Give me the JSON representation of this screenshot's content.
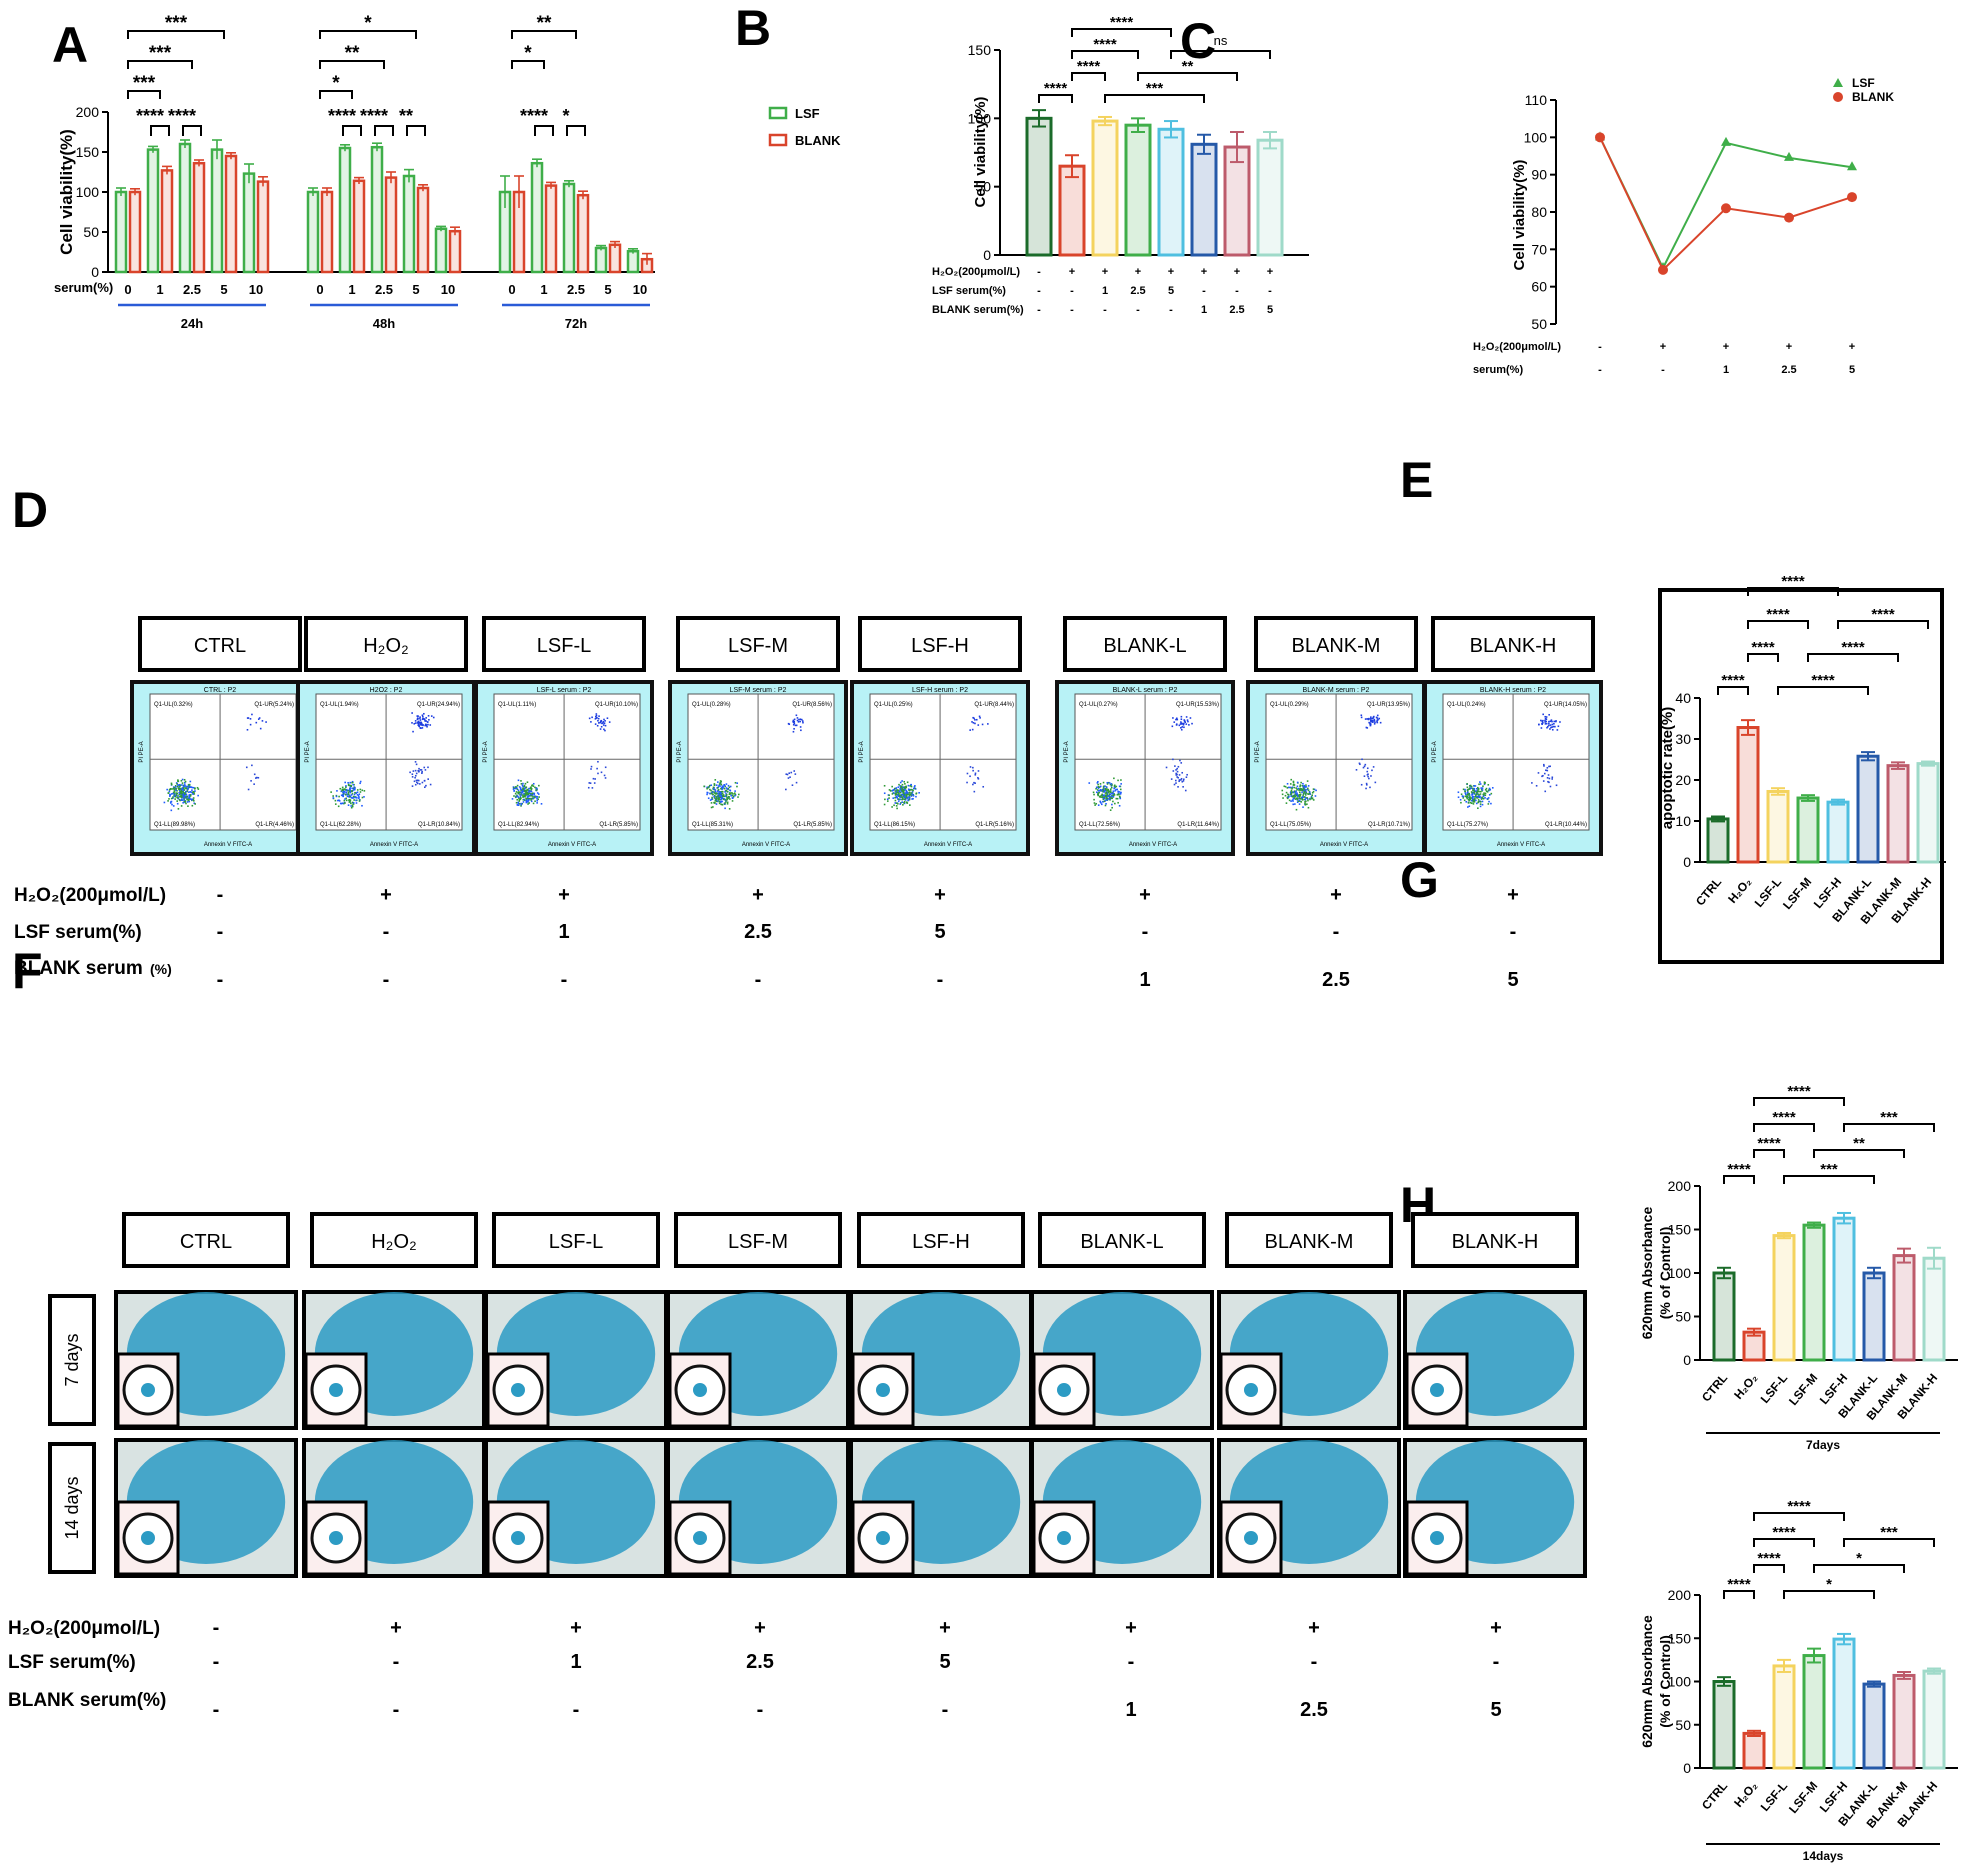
{
  "colors": {
    "CTRL": "#1b6b2a",
    "H2O2": "#d9442b",
    "LSF-L": "#f4d35e",
    "LSF-M": "#3fae49",
    "LSF-H": "#4fbfe0",
    "BLANK-L": "#2559a8",
    "BLANK-M": "#bd5b6b",
    "BLANK-H": "#9fdac9",
    "LSF": "#3fae49",
    "BLANK": "#d9442b",
    "axisline": "#2a5bd7",
    "flow_bg": "#b8f2f6",
    "stain": "#2c9bc4"
  },
  "panel_labels": {
    "A": "A",
    "B": "B",
    "C": "C",
    "D": "D",
    "E": "E",
    "F": "F",
    "G": "G",
    "H": "H"
  },
  "chart_data": [
    {
      "id": "A",
      "type": "bar",
      "ylabel": "Cell viability(%)",
      "ylim": [
        0,
        200
      ],
      "yticks": [
        0,
        50,
        100,
        150,
        200
      ],
      "xlabel_prefix": "serum(%)",
      "categories": [
        "0",
        "1",
        "2.5",
        "5",
        "10"
      ],
      "groups": [
        {
          "label": "24h",
          "LSF": [
            100,
            153,
            160,
            153,
            123
          ],
          "BLANK": [
            100,
            127,
            136,
            145,
            113
          ],
          "LSF_err": [
            5,
            4,
            5,
            12,
            12
          ],
          "BLANK_err": [
            4,
            5,
            4,
            4,
            6
          ]
        },
        {
          "label": "48h",
          "LSF": [
            100,
            155,
            156,
            120,
            54
          ],
          "BLANK": [
            100,
            114,
            118,
            105,
            51
          ],
          "LSF_err": [
            5,
            4,
            5,
            8,
            3
          ],
          "BLANK_err": [
            5,
            4,
            7,
            4,
            5
          ]
        },
        {
          "label": "72h",
          "LSF": [
            100,
            136,
            110,
            30,
            26
          ],
          "BLANK": [
            100,
            108,
            96,
            34,
            16
          ],
          "LSF_err": [
            20,
            5,
            4,
            3,
            3
          ],
          "BLANK_err": [
            20,
            4,
            5,
            4,
            7
          ]
        }
      ],
      "legend": [
        "LSF",
        "BLANK"
      ],
      "legend_position": "top-right",
      "annotations": [
        {
          "group": 0,
          "from": 0,
          "to": 3,
          "level": 0,
          "text": "***"
        },
        {
          "group": 0,
          "from": 0,
          "to": 2,
          "level": 1,
          "text": "***"
        },
        {
          "group": 0,
          "from": 0,
          "to": 1,
          "level": 2,
          "text": "***"
        },
        {
          "group": 1,
          "from": 0,
          "to": 3,
          "level": 0,
          "text": "*"
        },
        {
          "group": 1,
          "from": 0,
          "to": 2,
          "level": 1,
          "text": "**"
        },
        {
          "group": 1,
          "from": 0,
          "to": 1,
          "level": 2,
          "text": "*"
        },
        {
          "group": 2,
          "from": 0,
          "to": 2,
          "level": 0,
          "text": "**"
        },
        {
          "group": 2,
          "from": 0,
          "to": 1,
          "level": 1,
          "text": "*"
        }
      ],
      "pair_annotations": [
        {
          "group": 0,
          "cat": 1,
          "text": "****"
        },
        {
          "group": 0,
          "cat": 2,
          "text": "****"
        },
        {
          "group": 1,
          "cat": 1,
          "text": "****"
        },
        {
          "group": 1,
          "cat": 2,
          "text": "****"
        },
        {
          "group": 1,
          "cat": 3,
          "text": "**"
        },
        {
          "group": 2,
          "cat": 1,
          "text": "****"
        },
        {
          "group": 2,
          "cat": 2,
          "text": "*"
        }
      ]
    },
    {
      "id": "B",
      "type": "bar",
      "ylabel": "Cell viability(%)",
      "ylim": [
        0,
        150
      ],
      "yticks": [
        0,
        50,
        100,
        150
      ],
      "values": [
        100,
        65,
        98,
        95,
        92,
        81,
        79,
        84
      ],
      "errors": [
        6,
        8,
        3,
        5,
        6,
        7,
        11,
        6
      ],
      "colors": [
        "CTRL",
        "H2O2",
        "LSF-L",
        "LSF-M",
        "LSF-H",
        "BLANK-L",
        "BLANK-M",
        "BLANK-H"
      ],
      "condition_rows": [
        {
          "label": "H₂O₂(200μmol/L)",
          "cells": [
            "-",
            "+",
            "+",
            "+",
            "+",
            "+",
            "+",
            "+"
          ]
        },
        {
          "label": "LSF serum(%)",
          "cells": [
            "-",
            "-",
            "1",
            "2.5",
            "5",
            "-",
            "-",
            "-"
          ]
        },
        {
          "label": "BLANK serum(%)",
          "cells": [
            "-",
            "-",
            "-",
            "-",
            "-",
            "1",
            "2.5",
            "5"
          ]
        }
      ],
      "annotations": [
        {
          "from": 1,
          "to": 4,
          "level": 3,
          "text": "****"
        },
        {
          "from": 1,
          "to": 3,
          "level": 2,
          "text": "****"
        },
        {
          "from": 4,
          "to": 7,
          "level": 2,
          "text": "ns"
        },
        {
          "from": 1,
          "to": 2,
          "level": 1,
          "text": "****"
        },
        {
          "from": 3,
          "to": 6,
          "level": 1,
          "text": "**"
        },
        {
          "from": 0,
          "to": 1,
          "level": 0,
          "text": "****"
        },
        {
          "from": 2,
          "to": 5,
          "level": 0,
          "text": "***"
        }
      ]
    },
    {
      "id": "C",
      "type": "line",
      "ylabel": "Cell viability(%)",
      "ylim": [
        50,
        110
      ],
      "yticks": [
        50,
        60,
        70,
        80,
        90,
        100,
        110
      ],
      "series": [
        {
          "name": "LSF",
          "values": [
            100,
            65,
            98.5,
            94.5,
            92
          ]
        },
        {
          "name": "BLANK",
          "values": [
            100,
            64.5,
            81,
            78.5,
            84
          ]
        }
      ],
      "legend_position": "top-right",
      "condition_rows": [
        {
          "label": "H₂O₂(200μmol/L)",
          "cells": [
            "-",
            "+",
            "+",
            "+",
            "+"
          ]
        },
        {
          "label": "serum(%)",
          "cells": [
            "-",
            "-",
            "1",
            "2.5",
            "5"
          ]
        }
      ]
    },
    {
      "id": "E",
      "type": "bar",
      "ylabel": "apoptotic rate(%)",
      "ylim": [
        0,
        40
      ],
      "yticks": [
        0,
        10,
        20,
        30,
        40
      ],
      "categories": [
        "CTRL",
        "H₂O₂",
        "LSF-L",
        "LSF-M",
        "LSF-H",
        "BLANK-L",
        "BLANK-M",
        "BLANK-H"
      ],
      "values": [
        10.5,
        32.8,
        17.2,
        15.6,
        14.6,
        25.8,
        23.5,
        24.0
      ],
      "errors": [
        0.6,
        1.8,
        0.8,
        0.7,
        0.6,
        1.0,
        0.8,
        0.5
      ],
      "colors": [
        "CTRL",
        "H2O2",
        "LSF-L",
        "LSF-M",
        "LSF-H",
        "BLANK-L",
        "BLANK-M",
        "BLANK-H"
      ],
      "annotations": [
        {
          "from": 1,
          "to": 4,
          "level": 3,
          "text": "****"
        },
        {
          "from": 1,
          "to": 3,
          "level": 2,
          "text": "****"
        },
        {
          "from": 4,
          "to": 7,
          "level": 2,
          "text": "****"
        },
        {
          "from": 1,
          "to": 2,
          "level": 1,
          "text": "****"
        },
        {
          "from": 3,
          "to": 6,
          "level": 1,
          "text": "****"
        },
        {
          "from": 0,
          "to": 1,
          "level": 0,
          "text": "****"
        },
        {
          "from": 2,
          "to": 5,
          "level": 0,
          "text": "****"
        }
      ]
    },
    {
      "id": "G",
      "type": "bar",
      "ylabel": "620mm Absorbance",
      "ylabel2": "(% of Control)",
      "ylim": [
        0,
        200
      ],
      "yticks": [
        0,
        50,
        100,
        150,
        200
      ],
      "categories": [
        "CTRL",
        "H₂O₂",
        "LSF-L",
        "LSF-M",
        "LSF-H",
        "BLANK-L",
        "BLANK-M",
        "BLANK-H"
      ],
      "values": [
        100,
        32,
        143,
        155,
        163,
        100,
        120,
        117
      ],
      "errors": [
        6,
        4,
        3,
        3,
        6,
        6,
        8,
        12
      ],
      "colors": [
        "CTRL",
        "H2O2",
        "LSF-L",
        "LSF-M",
        "LSF-H",
        "BLANK-L",
        "BLANK-M",
        "BLANK-H"
      ],
      "group_label": "7days",
      "annotations": [
        {
          "from": 1,
          "to": 4,
          "level": 3,
          "text": "****"
        },
        {
          "from": 1,
          "to": 3,
          "level": 2,
          "text": "****"
        },
        {
          "from": 4,
          "to": 7,
          "level": 2,
          "text": "***"
        },
        {
          "from": 1,
          "to": 2,
          "level": 1,
          "text": "****"
        },
        {
          "from": 3,
          "to": 6,
          "level": 1,
          "text": "**"
        },
        {
          "from": 0,
          "to": 1,
          "level": 0,
          "text": "****"
        },
        {
          "from": 2,
          "to": 5,
          "level": 0,
          "text": "***"
        }
      ]
    },
    {
      "id": "H",
      "type": "bar",
      "ylabel": "620mm Absorbance",
      "ylabel2": "(% of Control)",
      "ylim": [
        0,
        200
      ],
      "yticks": [
        0,
        50,
        100,
        150,
        200
      ],
      "categories": [
        "CTRL",
        "H₂O₂",
        "LSF-L",
        "LSF-M",
        "LSF-H",
        "BLANK-L",
        "BLANK-M",
        "BLANK-H"
      ],
      "values": [
        100,
        40,
        118,
        130,
        149,
        97,
        107,
        112
      ],
      "errors": [
        5,
        3,
        7,
        8,
        6,
        3,
        4,
        3
      ],
      "colors": [
        "CTRL",
        "H2O2",
        "LSF-L",
        "LSF-M",
        "LSF-H",
        "BLANK-L",
        "BLANK-M",
        "BLANK-H"
      ],
      "group_label": "14days",
      "annotations": [
        {
          "from": 1,
          "to": 4,
          "level": 3,
          "text": "****"
        },
        {
          "from": 1,
          "to": 3,
          "level": 2,
          "text": "****"
        },
        {
          "from": 4,
          "to": 7,
          "level": 2,
          "text": "***"
        },
        {
          "from": 1,
          "to": 2,
          "level": 1,
          "text": "****"
        },
        {
          "from": 3,
          "to": 6,
          "level": 1,
          "text": "*"
        },
        {
          "from": 0,
          "to": 1,
          "level": 0,
          "text": "****"
        },
        {
          "from": 2,
          "to": 5,
          "level": 0,
          "text": "*"
        }
      ]
    }
  ],
  "panel_D": {
    "groups": [
      "CTRL",
      "H₂O₂",
      "LSF-L",
      "LSF-M",
      "LSF-H",
      "BLANK-L",
      "BLANK-M",
      "BLANK-H"
    ],
    "plot_titles": [
      "CTRL : P2",
      "H2O2 : P2",
      "LSF-L serum : P2",
      "LSF-M serum : P2",
      "LSF-H serum : P2",
      "BLANK-L serum : P2",
      "BLANK-M serum : P2",
      "BLANK-H serum : P2"
    ],
    "quadrants": [
      {
        "UL": "Q1-UL(0.32%)",
        "UR": "Q1-UR(5.24%)",
        "LL": "Q1-LL(89.98%)",
        "LR": "Q1-LR(4.46%)"
      },
      {
        "UL": "Q1-UL(1.94%)",
        "UR": "Q1-UR(24.94%)",
        "LL": "Q1-LL(62.28%)",
        "LR": "Q1-LR(10.84%)"
      },
      {
        "UL": "Q1-UL(1.11%)",
        "UR": "Q1-UR(10.10%)",
        "LL": "Q1-LL(82.94%)",
        "LR": "Q1-LR(5.85%)"
      },
      {
        "UL": "Q1-UL(0.28%)",
        "UR": "Q1-UR(8.56%)",
        "LL": "Q1-LL(85.31%)",
        "LR": "Q1-LR(5.85%)"
      },
      {
        "UL": "Q1-UL(0.25%)",
        "UR": "Q1-UR(8.44%)",
        "LL": "Q1-LL(86.15%)",
        "LR": "Q1-LR(5.16%)"
      },
      {
        "UL": "Q1-UL(0.27%)",
        "UR": "Q1-UR(15.53%)",
        "LL": "Q1-LL(72.56%)",
        "LR": "Q1-LR(11.64%)"
      },
      {
        "UL": "Q1-UL(0.29%)",
        "UR": "Q1-UR(13.95%)",
        "LL": "Q1-LL(75.05%)",
        "LR": "Q1-LR(10.71%)"
      },
      {
        "UL": "Q1-UL(0.24%)",
        "UR": "Q1-UR(14.05%)",
        "LL": "Q1-LL(75.27%)",
        "LR": "Q1-LR(10.44%)"
      }
    ],
    "x_axis_label": "Annexin V FITC-A",
    "y_axis_label": "PI PE-A",
    "condition_rows": [
      {
        "label": "H₂O₂(200μmol/L)",
        "cells": [
          "-",
          "+",
          "+",
          "+",
          "+",
          "+",
          "+",
          "+"
        ]
      },
      {
        "label": "LSF serum(%)",
        "cells": [
          "-",
          "-",
          "1",
          "2.5",
          "5",
          "-",
          "-",
          "-"
        ]
      },
      {
        "label": "BLANK serum",
        "label_suffix": "(%)",
        "cells": [
          "-",
          "-",
          "-",
          "-",
          "-",
          "1",
          "2.5",
          "5"
        ]
      }
    ]
  },
  "panel_F": {
    "groups": [
      "CTRL",
      "H₂O₂",
      "LSF-L",
      "LSF-M",
      "LSF-H",
      "BLANK-L",
      "BLANK-M",
      "BLANK-H"
    ],
    "rows": [
      "7 days",
      "14 days"
    ],
    "condition_rows": [
      {
        "label": "H₂O₂(200μmol/L)",
        "cells": [
          "-",
          "+",
          "+",
          "+",
          "+",
          "+",
          "+",
          "+"
        ]
      },
      {
        "label": "LSF serum(%)",
        "cells": [
          "-",
          "-",
          "1",
          "2.5",
          "5",
          "-",
          "-",
          "-"
        ]
      },
      {
        "label": "BLANK serum(%)",
        "cells": [
          "-",
          "-",
          "-",
          "-",
          "-",
          "1",
          "2.5",
          "5"
        ]
      }
    ]
  }
}
